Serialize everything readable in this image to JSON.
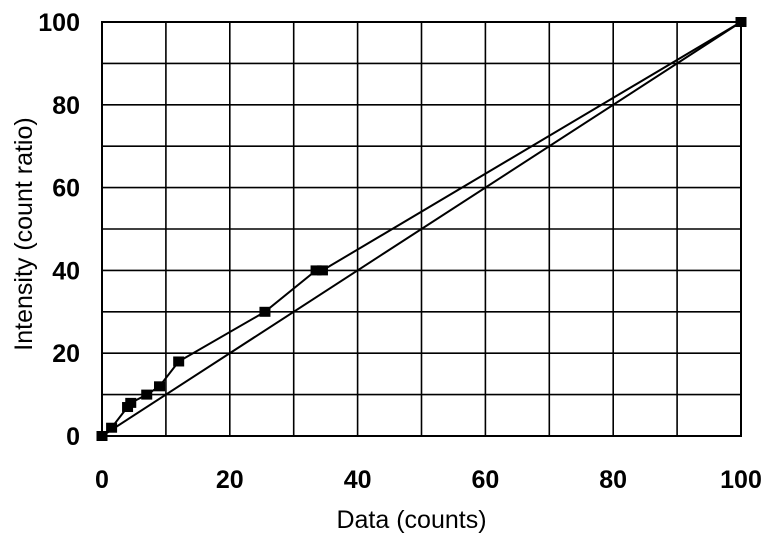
{
  "chart_data": {
    "type": "line",
    "title": "",
    "xlabel": "Data (counts)",
    "ylabel": "Intensity (count ratio)",
    "xlim": [
      0,
      100
    ],
    "ylim": [
      0,
      100
    ],
    "x_ticks": [
      0,
      20,
      40,
      60,
      80,
      100
    ],
    "y_ticks": [
      0,
      20,
      40,
      60,
      80,
      100
    ],
    "grid": true,
    "series": [
      {
        "style": "line-with-square-markers",
        "color": "#000000",
        "x": [
          0,
          1.5,
          4,
          4.5,
          7,
          9,
          12,
          25.5,
          33.5,
          34.5,
          100
        ],
        "y": [
          0,
          2,
          7,
          8,
          10,
          12,
          18,
          30,
          40,
          40,
          100
        ]
      },
      {
        "style": "line",
        "color": "#000000",
        "x": [
          0,
          100
        ],
        "y": [
          0,
          100
        ]
      }
    ]
  }
}
